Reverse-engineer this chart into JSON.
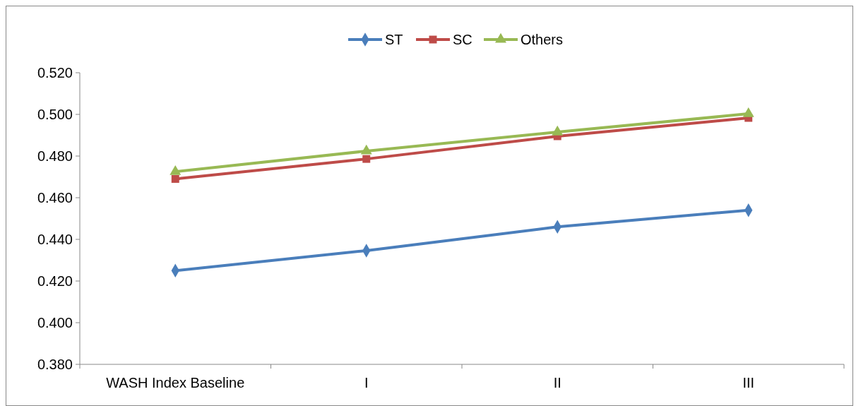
{
  "chart_data": {
    "type": "line",
    "categories": [
      "WASH Index Baseline",
      "I",
      "II",
      "III"
    ],
    "series": [
      {
        "name": "ST",
        "color": "#4a7ebb",
        "marker": "diamond",
        "values": [
          0.425,
          0.4346,
          0.446,
          0.454
        ]
      },
      {
        "name": "SC",
        "color": "#be4b48",
        "marker": "square",
        "values": [
          0.469,
          0.4786,
          0.4895,
          0.4983
        ]
      },
      {
        "name": "Others",
        "color": "#98b954",
        "marker": "triangle",
        "values": [
          0.4725,
          0.4824,
          0.4915,
          0.5003
        ]
      }
    ],
    "ylim": [
      0.38,
      0.52
    ],
    "yticks": [
      {
        "value": 0.38,
        "label": "0.380"
      },
      {
        "value": 0.4,
        "label": "0.400"
      },
      {
        "value": 0.42,
        "label": "0.420"
      },
      {
        "value": 0.44,
        "label": "0.440"
      },
      {
        "value": 0.46,
        "label": "0.460"
      },
      {
        "value": 0.48,
        "label": "0.480"
      },
      {
        "value": 0.5,
        "label": "0.500"
      },
      {
        "value": 0.52,
        "label": "0.520"
      }
    ],
    "grid": false,
    "legend": "top",
    "line_style": "solid"
  }
}
